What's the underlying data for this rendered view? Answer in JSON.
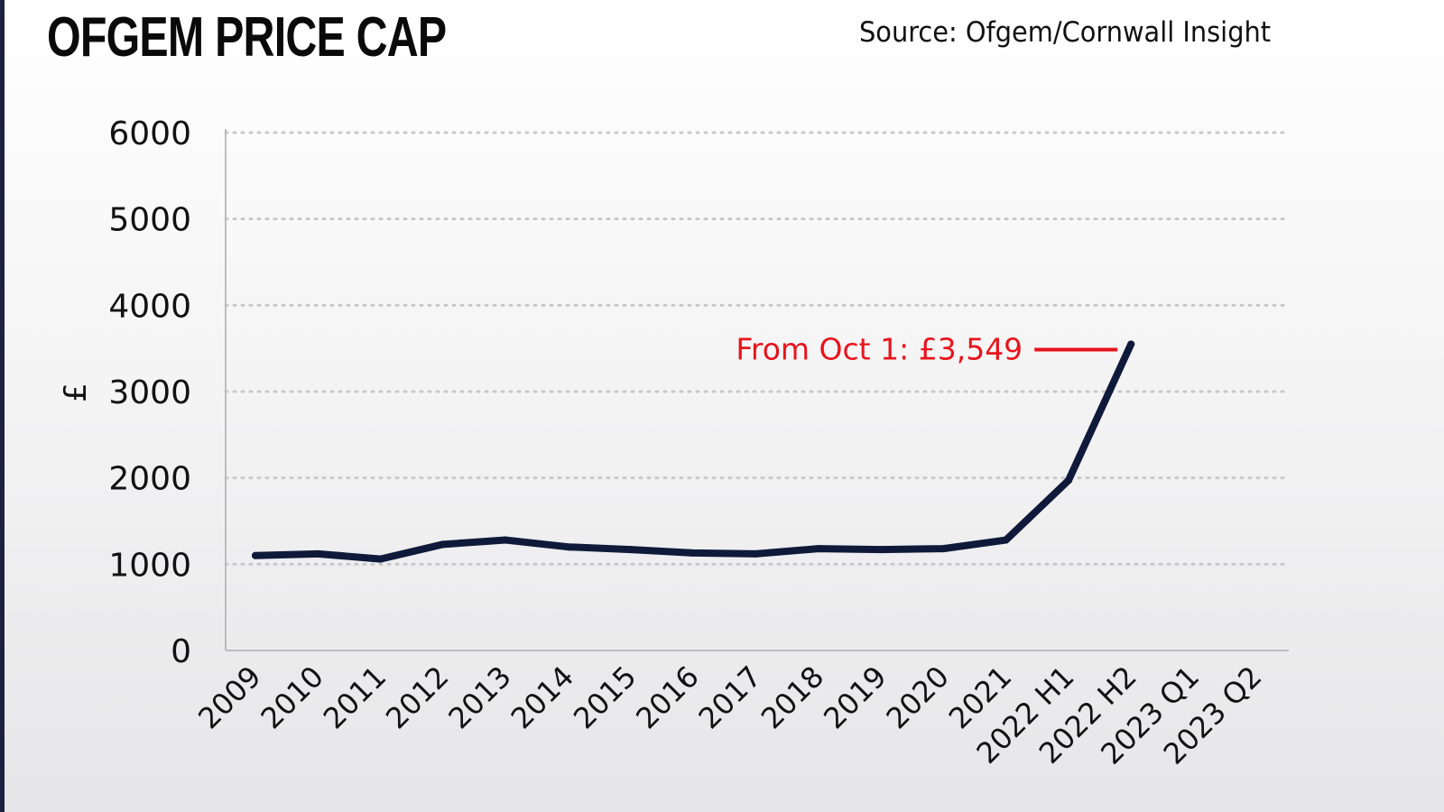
{
  "header": {
    "title": "OFGEM PRICE CAP",
    "source": "Source: Ofgem/Cornwall Insight"
  },
  "colors": {
    "line": "#0f1a3a",
    "annotation": "#e8141c",
    "grid": "#c8c8c8"
  },
  "chart_data": {
    "type": "line",
    "title": "OFGEM PRICE CAP",
    "ylabel": "£",
    "xlabel": "",
    "ylim": [
      0,
      6000
    ],
    "yticks": [
      "0",
      "1000",
      "2000",
      "3000",
      "4000",
      "5000",
      "6000"
    ],
    "grid": "horizontal dotted",
    "categories": [
      "2009",
      "2010",
      "2011",
      "2012",
      "2013",
      "2014",
      "2015",
      "2016",
      "2017",
      "2018",
      "2019",
      "2020",
      "2021",
      "2022 H1",
      "2022 H2",
      "2023 Q1",
      "2023 Q2"
    ],
    "series": [
      {
        "values": [
          1100,
          1120,
          1060,
          1230,
          1280,
          1200,
          1170,
          1130,
          1120,
          1180,
          1170,
          1180,
          1280,
          1970,
          3549,
          null,
          null
        ]
      }
    ],
    "annotations": [
      {
        "text": "From Oct 1: £3,549",
        "category": "2022 H2",
        "value": 3549
      }
    ]
  }
}
